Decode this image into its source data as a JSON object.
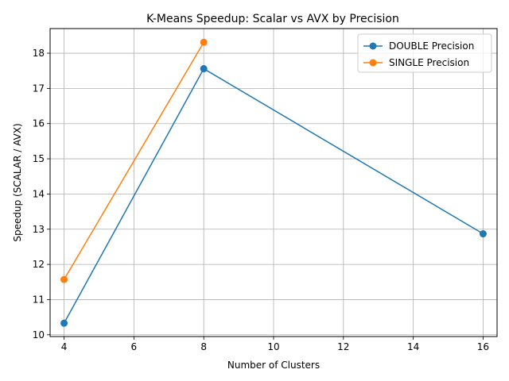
{
  "chart_data": {
    "type": "line",
    "title": "K-Means Speedup: Scalar vs AVX by Precision",
    "xlabel": "Number of Clusters",
    "ylabel": "Speedup (SCALAR / AVX)",
    "xlim": [
      3.6,
      16.4
    ],
    "ylim": [
      9.95,
      18.7
    ],
    "xticks": [
      4,
      6,
      8,
      10,
      12,
      14,
      16
    ],
    "yticks": [
      10,
      11,
      12,
      13,
      14,
      15,
      16,
      17,
      18
    ],
    "grid": true,
    "legend_position": "top-right",
    "series": [
      {
        "name": "DOUBLE Precision",
        "color": "#1f77b4",
        "x": [
          4,
          8,
          16
        ],
        "values": [
          10.33,
          17.56,
          12.87
        ]
      },
      {
        "name": "SINGLE Precision",
        "color": "#ff7f0e",
        "x": [
          4,
          8
        ],
        "values": [
          11.57,
          18.31
        ]
      }
    ]
  }
}
